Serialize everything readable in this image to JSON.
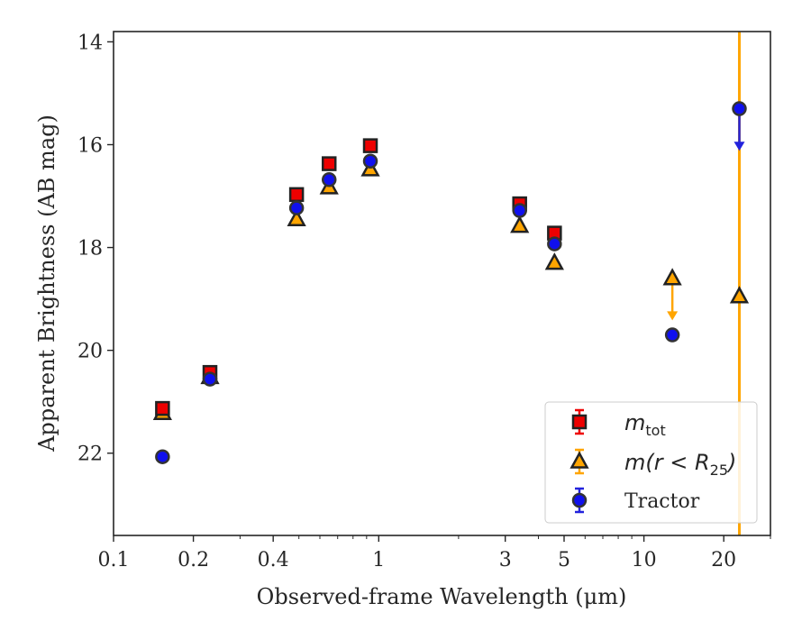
{
  "chart_data": {
    "type": "scatter",
    "xlabel": "Observed-frame Wavelength (μm)",
    "ylabel": "Apparent Brightness (AB mag)",
    "xscale": "log",
    "xlim": [
      0.1,
      30
    ],
    "ylim": [
      23.6,
      13.8
    ],
    "y_inverted": true,
    "x_ticks": [
      {
        "value": 0.1,
        "label": "0.1"
      },
      {
        "value": 0.2,
        "label": "0.2"
      },
      {
        "value": 0.4,
        "label": "0.4"
      },
      {
        "value": 1,
        "label": "1"
      },
      {
        "value": 3,
        "label": "3"
      },
      {
        "value": 5,
        "label": "5"
      },
      {
        "value": 10,
        "label": "10"
      },
      {
        "value": 20,
        "label": "20"
      }
    ],
    "y_ticks": [
      {
        "value": 14,
        "label": "14"
      },
      {
        "value": 16,
        "label": "16"
      },
      {
        "value": 18,
        "label": "18"
      },
      {
        "value": 20,
        "label": "20"
      },
      {
        "value": 22,
        "label": "22"
      }
    ],
    "grid": false,
    "legend_position": "lower-right",
    "series": [
      {
        "name": "m_tot",
        "legend_label": "m",
        "legend_subscript": "tot",
        "marker": "square",
        "color": "#ee0000",
        "edge_color": "#222222",
        "points": [
          {
            "x": 0.153,
            "y": 21.13
          },
          {
            "x": 0.231,
            "y": 20.43
          },
          {
            "x": 0.49,
            "y": 16.97
          },
          {
            "x": 0.65,
            "y": 16.37
          },
          {
            "x": 0.93,
            "y": 16.02
          },
          {
            "x": 3.4,
            "y": 17.15
          },
          {
            "x": 4.6,
            "y": 17.72
          }
        ]
      },
      {
        "name": "m(r<R25)",
        "legend_label": "m(r < R",
        "legend_subscript": "25",
        "legend_suffix": ")",
        "marker": "triangle",
        "color": "#ffa500",
        "edge_color": "#222222",
        "points": [
          {
            "x": 0.153,
            "y": 21.22
          },
          {
            "x": 0.231,
            "y": 20.52
          },
          {
            "x": 0.49,
            "y": 17.45
          },
          {
            "x": 0.65,
            "y": 16.83
          },
          {
            "x": 0.93,
            "y": 16.48
          },
          {
            "x": 3.4,
            "y": 17.58
          },
          {
            "x": 4.6,
            "y": 18.3
          },
          {
            "x": 12.8,
            "y": 18.6,
            "upper_limit_to": 19.4
          },
          {
            "x": 22.9,
            "y": 18.95,
            "error_full_height": true
          }
        ]
      },
      {
        "name": "Tractor",
        "legend_label": "Tractor",
        "marker": "circle",
        "color": "#1010ee",
        "edge_color": "#333333",
        "points": [
          {
            "x": 0.153,
            "y": 22.07
          },
          {
            "x": 0.231,
            "y": 20.56
          },
          {
            "x": 0.49,
            "y": 17.23
          },
          {
            "x": 0.65,
            "y": 16.68
          },
          {
            "x": 0.93,
            "y": 16.32
          },
          {
            "x": 3.4,
            "y": 17.28
          },
          {
            "x": 4.6,
            "y": 17.93
          },
          {
            "x": 12.8,
            "y": 19.7
          },
          {
            "x": 22.9,
            "y": 15.3,
            "upper_limit_to": 16.1
          }
        ]
      }
    ]
  }
}
